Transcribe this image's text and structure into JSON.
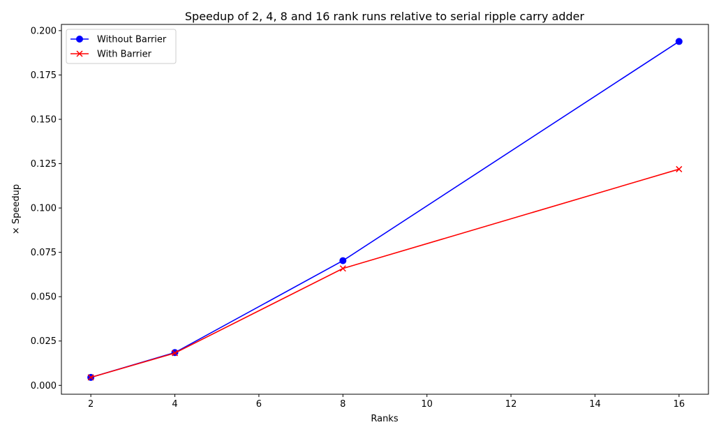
{
  "chart_data": {
    "type": "line",
    "title": "Speedup of 2, 4, 8 and 16 rank runs relative to serial ripple carry adder",
    "xlabel": "Ranks",
    "ylabel": "× Speedup",
    "x": [
      2,
      4,
      8,
      16
    ],
    "xlim": [
      1.3,
      16.7
    ],
    "ylim": [
      -0.005,
      0.2035
    ],
    "xticks": [
      2,
      4,
      6,
      8,
      10,
      12,
      14,
      16
    ],
    "xtick_labels": [
      "2",
      "4",
      "6",
      "8",
      "10",
      "12",
      "14",
      "16"
    ],
    "yticks": [
      0.0,
      0.025,
      0.05,
      0.075,
      0.1,
      0.125,
      0.15,
      0.175,
      0.2
    ],
    "ytick_labels": [
      "0.000",
      "0.025",
      "0.050",
      "0.075",
      "0.100",
      "0.125",
      "0.150",
      "0.175",
      "0.200"
    ],
    "grid": false,
    "legend_position": "top-left",
    "series": [
      {
        "name": "Without Barrier",
        "values": [
          0.0045,
          0.0185,
          0.0703,
          0.1939
        ],
        "color": "#0000ff",
        "marker": "circle"
      },
      {
        "name": "With Barrier",
        "values": [
          0.0045,
          0.0182,
          0.0659,
          0.1219
        ],
        "color": "#ff0000",
        "marker": "x"
      }
    ]
  }
}
